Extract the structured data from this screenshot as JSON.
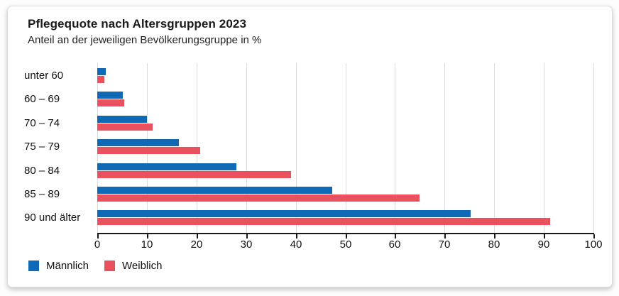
{
  "card": {
    "title": "Pflegequote nach Altersgruppen 2023",
    "subtitle": "Anteil an der jeweiligen Bevölkerungsgruppe in %"
  },
  "colors": {
    "maennlich": "#1069b4",
    "weiblich": "#e8515d",
    "gridline": "#dcdcdc",
    "axis": "#1a1a1a",
    "text": "#111111"
  },
  "chart_data": {
    "type": "bar",
    "orientation": "horizontal",
    "title": "Pflegequote nach Altersgruppen 2023",
    "subtitle": "Anteil an der jeweiligen Bevölkerungsgruppe in %",
    "categories": [
      "unter 60",
      "60 – 69",
      "70 – 74",
      "75 – 79",
      "80 – 84",
      "85 – 89",
      "90 und älter"
    ],
    "series": [
      {
        "name": "Männlich",
        "color": "#1069b4",
        "values": [
          1.7,
          5.2,
          10.0,
          16.4,
          28.1,
          47.3,
          75.2
        ]
      },
      {
        "name": "Weiblich",
        "color": "#e8515d",
        "values": [
          1.4,
          5.4,
          11.1,
          20.7,
          39.1,
          65.0,
          91.3
        ]
      }
    ],
    "xlabel": "",
    "ylabel": "",
    "xlim": [
      0,
      100
    ],
    "xticks": [
      0,
      10,
      20,
      30,
      40,
      50,
      60,
      70,
      80,
      90,
      100
    ],
    "grid": true,
    "legend_position": "bottom"
  }
}
